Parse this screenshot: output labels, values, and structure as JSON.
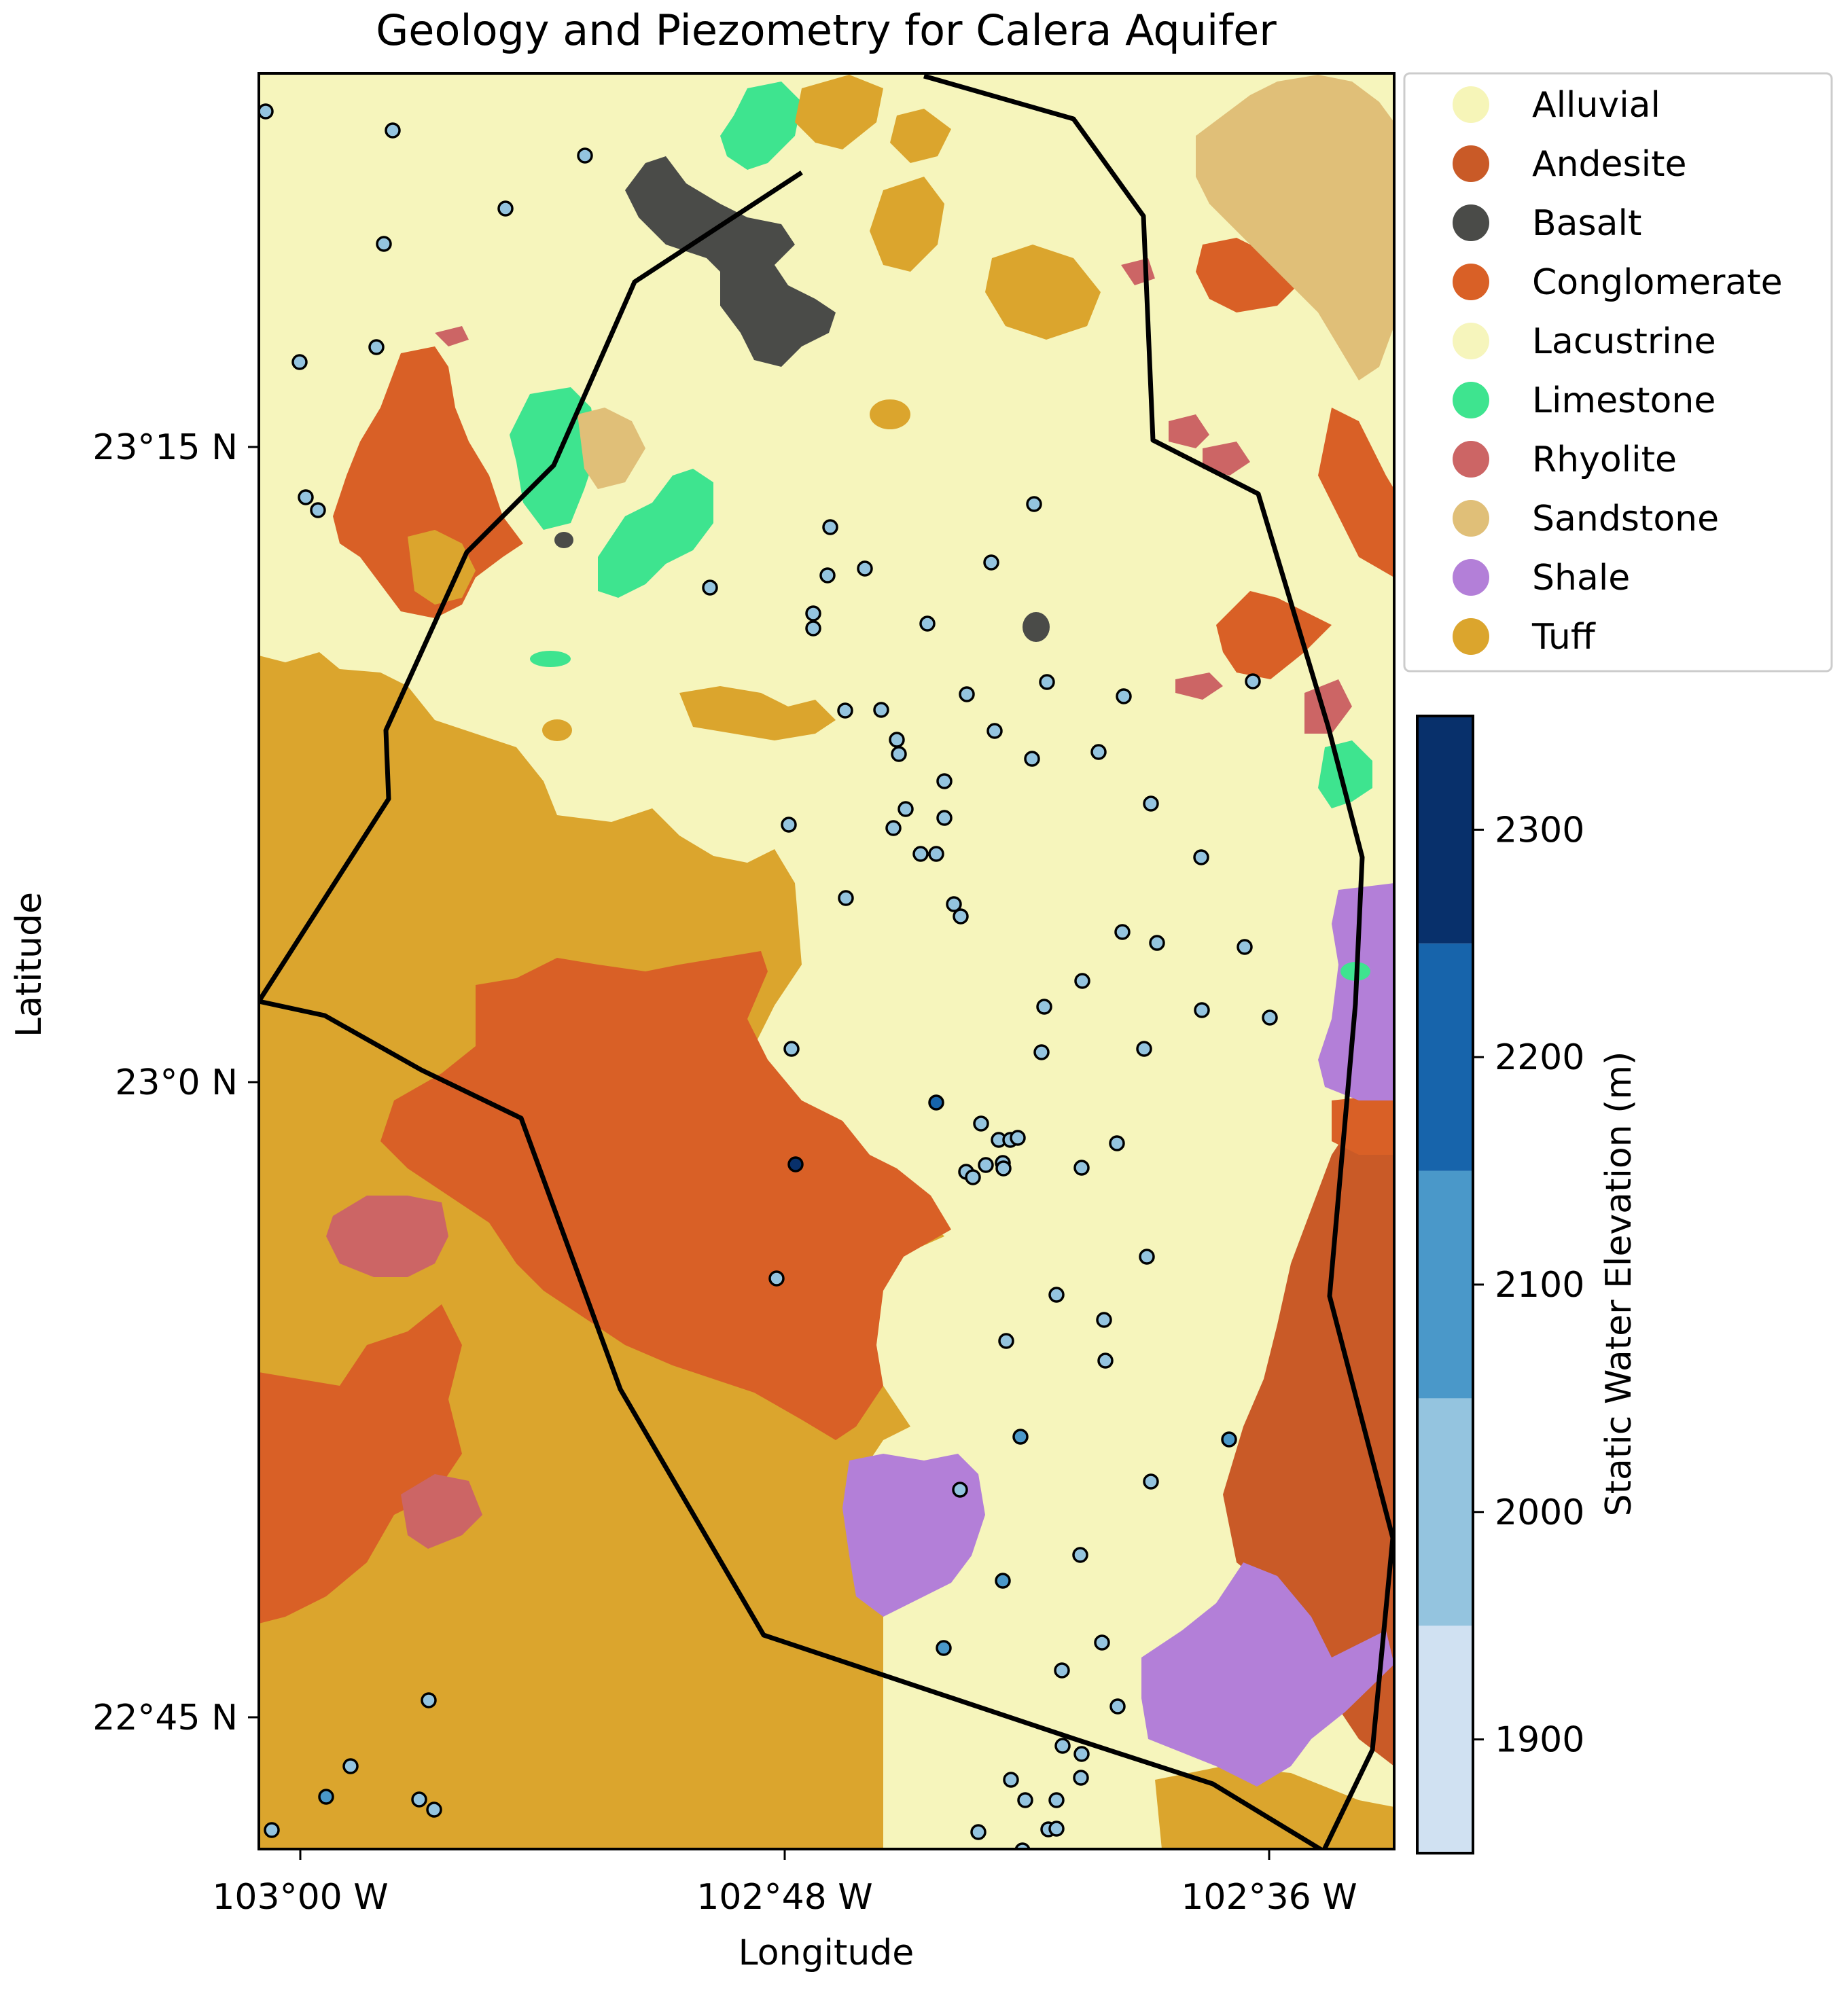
{
  "title": "Geology and Piezometry for Calera Aquifer",
  "xlabel": "Longitude",
  "ylabel": "Latitude",
  "x_ticks": [
    {
      "value": -103.0,
      "label": "103°00 W"
    },
    {
      "value": -102.8,
      "label": "102°48 W"
    },
    {
      "value": -102.6,
      "label": "102°36 W"
    }
  ],
  "y_ticks": [
    {
      "value": 23.25,
      "label": "23°15 N"
    },
    {
      "value": 23.0,
      "label": "23°0 N"
    },
    {
      "value": 22.75,
      "label": "22°45 N"
    }
  ],
  "legend": [
    {
      "label": "Alluvial",
      "color": "#f6f5b8"
    },
    {
      "label": "Andesite",
      "color": "#c95a27"
    },
    {
      "label": "Basalt",
      "color": "#4a4b48"
    },
    {
      "label": "Conglomerate",
      "color": "#d96026"
    },
    {
      "label": "Lacustrine",
      "color": "#f6f5bc"
    },
    {
      "label": "Limestone",
      "color": "#3ee48f"
    },
    {
      "label": "Rhyolite",
      "color": "#cc6565"
    },
    {
      "label": "Sandstone",
      "color": "#e0bf78"
    },
    {
      "label": "Shale",
      "color": "#b37fd8"
    },
    {
      "label": "Tuff",
      "color": "#dba52d"
    }
  ],
  "colorbar": {
    "label": "Static Water Elevation (m)",
    "ticks": [
      "1900",
      "2000",
      "2100",
      "2200",
      "2300"
    ],
    "bins": [
      {
        "min": 1850,
        "max": 1950,
        "color": "#d0e1f2"
      },
      {
        "min": 1950,
        "max": 2050,
        "color": "#94c4df"
      },
      {
        "min": 2050,
        "max": 2150,
        "color": "#4a98c9"
      },
      {
        "min": 2150,
        "max": 2250,
        "color": "#1764ab"
      },
      {
        "min": 2250,
        "max": 2350,
        "color": "#08306b"
      }
    ]
  }
}
